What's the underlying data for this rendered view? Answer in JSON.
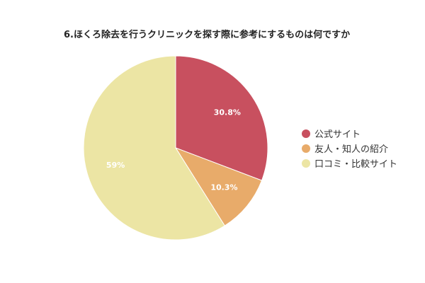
{
  "chart_data": {
    "type": "pie",
    "title": "6.ほくろ除去を行うクリニックを探す際に参考にするものは何ですか",
    "categories": [
      "公式サイト",
      "友人・知人の紹介",
      "口コミ・比較サイト"
    ],
    "values": [
      30.8,
      10.3,
      59
    ],
    "data_labels": [
      "30.8%",
      "10.3%",
      "59%"
    ],
    "colors": [
      "#c8505f",
      "#e8ab6a",
      "#ece5a4"
    ],
    "legend_position": "right",
    "start_angle": "12 o'clock",
    "direction": "clockwise"
  }
}
